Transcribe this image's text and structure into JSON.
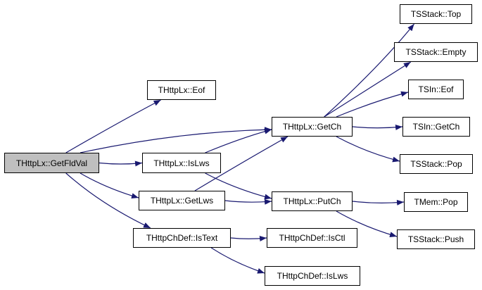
{
  "graph": {
    "edge_color": "#191970",
    "root_fill": "#bfbfbf",
    "nodes": {
      "getfldval": "THttpLx::GetFldVal",
      "eof": "THttpLx::Eof",
      "getch": "THttpLx::GetCh",
      "islws": "THttpLx::IsLws",
      "getlws": "THttpLx::GetLws",
      "putch": "THttpLx::PutCh",
      "istext": "THttpChDef::IsText",
      "isctl": "THttpChDef::IsCtl",
      "chdef_islws": "THttpChDef::IsLws",
      "sstack_top": "TSStack::Top",
      "sstack_empty": "TSStack::Empty",
      "sin_eof": "TSIn::Eof",
      "sin_getch": "TSIn::GetCh",
      "sstack_pop": "TSStack::Pop",
      "mem_pop": "TMem::Pop",
      "sstack_push": "TSStack::Push"
    },
    "edges": [
      [
        "getfldval",
        "eof"
      ],
      [
        "getfldval",
        "getch"
      ],
      [
        "getfldval",
        "islws"
      ],
      [
        "getfldval",
        "getlws"
      ],
      [
        "getfldval",
        "istext"
      ],
      [
        "islws",
        "getch"
      ],
      [
        "islws",
        "putch"
      ],
      [
        "getlws",
        "getch"
      ],
      [
        "getlws",
        "putch"
      ],
      [
        "getch",
        "sstack_top"
      ],
      [
        "getch",
        "sstack_empty"
      ],
      [
        "getch",
        "sin_eof"
      ],
      [
        "getch",
        "sin_getch"
      ],
      [
        "getch",
        "sstack_pop"
      ],
      [
        "putch",
        "mem_pop"
      ],
      [
        "putch",
        "sstack_push"
      ],
      [
        "istext",
        "isctl"
      ],
      [
        "istext",
        "chdef_islws"
      ]
    ]
  }
}
